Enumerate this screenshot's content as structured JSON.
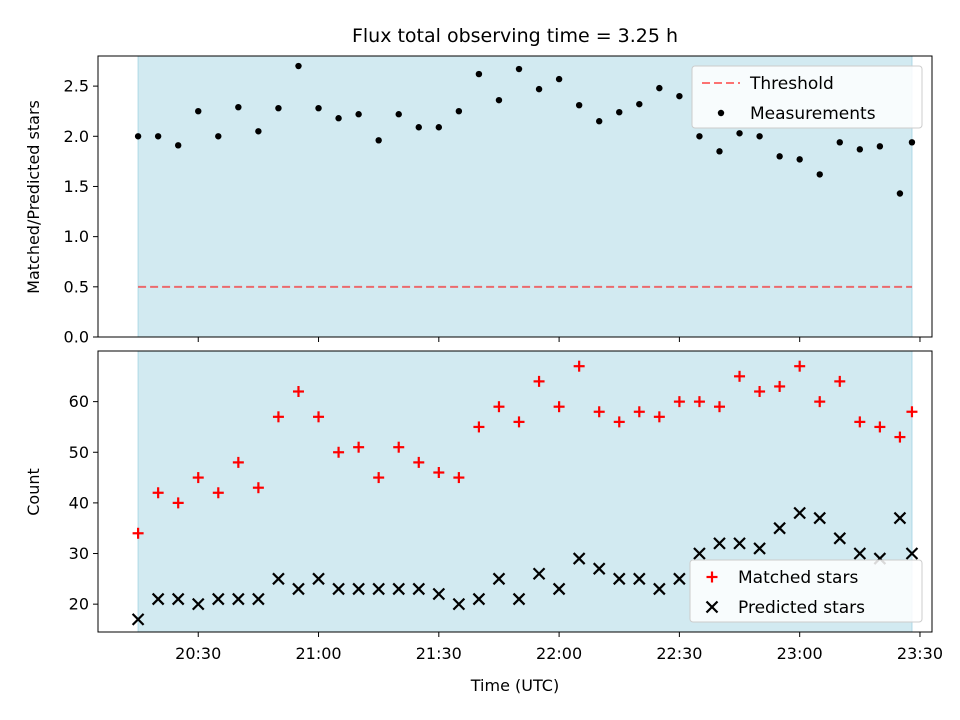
{
  "chart_data": [
    {
      "type": "scatter",
      "title": "Flux total observing time = 3.25 h",
      "ylabel": "Matched/Predicted stars",
      "xlabel": "",
      "ylim": [
        0,
        2.8
      ],
      "yticks": [
        "0.0",
        "0.5",
        "1.0",
        "1.5",
        "2.0",
        "2.5"
      ],
      "xticks": [
        "20:30",
        "21:00",
        "21:30",
        "22:00",
        "22:30",
        "23:00",
        "23:30"
      ],
      "xlim": [
        "20:05",
        "23:33"
      ],
      "shaded_span": [
        "20:15",
        "23:28"
      ],
      "shade_color": "#add8e6",
      "threshold": {
        "name": "Threshold",
        "value": 0.5,
        "color": "#ff0000"
      },
      "legend": {
        "placement": "top-right",
        "entries": [
          "Threshold",
          "Measurements"
        ]
      },
      "series": [
        {
          "name": "Measurements",
          "color": "#000000",
          "marker": "dot",
          "x": [
            "20:15",
            "20:20",
            "20:25",
            "20:30",
            "20:35",
            "20:40",
            "20:45",
            "20:50",
            "20:55",
            "21:00",
            "21:05",
            "21:10",
            "21:15",
            "21:20",
            "21:25",
            "21:30",
            "21:35",
            "21:40",
            "21:45",
            "21:50",
            "21:55",
            "22:00",
            "22:05",
            "22:10",
            "22:15",
            "22:20",
            "22:25",
            "22:30",
            "22:35",
            "22:40",
            "22:45",
            "22:50",
            "22:55",
            "23:00",
            "23:05",
            "23:10",
            "23:15",
            "23:20",
            "23:25",
            "23:28"
          ],
          "y": [
            2.0,
            2.0,
            1.91,
            2.25,
            2.0,
            2.29,
            2.05,
            2.28,
            2.7,
            2.28,
            2.18,
            2.22,
            1.96,
            2.22,
            2.09,
            2.09,
            2.25,
            2.62,
            2.36,
            2.67,
            2.47,
            2.57,
            2.31,
            2.15,
            2.24,
            2.32,
            2.48,
            2.4,
            2.0,
            1.85,
            2.03,
            2.0,
            1.8,
            1.77,
            1.62,
            1.94,
            1.87,
            1.9,
            1.43,
            1.94
          ]
        }
      ]
    },
    {
      "type": "scatter",
      "title": "",
      "ylabel": "Count",
      "xlabel": "Time (UTC)",
      "ylim": [
        14.5,
        70
      ],
      "yticks": [
        "20",
        "30",
        "40",
        "50",
        "60"
      ],
      "xticks": [
        "20:30",
        "21:00",
        "21:30",
        "22:00",
        "22:30",
        "23:00",
        "23:30"
      ],
      "xlim": [
        "20:05",
        "23:33"
      ],
      "shaded_span": [
        "20:15",
        "23:28"
      ],
      "shade_color": "#add8e6",
      "legend": {
        "placement": "bottom-right",
        "entries": [
          "Matched stars",
          "Predicted stars"
        ]
      },
      "series": [
        {
          "name": "Matched stars",
          "color": "#ff0000",
          "marker": "plus",
          "x": [
            "20:15",
            "20:20",
            "20:25",
            "20:30",
            "20:35",
            "20:40",
            "20:45",
            "20:50",
            "20:55",
            "21:00",
            "21:05",
            "21:10",
            "21:15",
            "21:20",
            "21:25",
            "21:30",
            "21:35",
            "21:40",
            "21:45",
            "21:50",
            "21:55",
            "22:00",
            "22:05",
            "22:10",
            "22:15",
            "22:20",
            "22:25",
            "22:30",
            "22:35",
            "22:40",
            "22:45",
            "22:50",
            "22:55",
            "23:00",
            "23:05",
            "23:10",
            "23:15",
            "23:20",
            "23:25",
            "23:28"
          ],
          "y": [
            34,
            42,
            40,
            45,
            42,
            48,
            43,
            57,
            62,
            57,
            50,
            51,
            45,
            51,
            48,
            46,
            45,
            55,
            59,
            56,
            64,
            59,
            67,
            58,
            56,
            58,
            57,
            60,
            60,
            59,
            65,
            62,
            63,
            67,
            60,
            64,
            56,
            55,
            53,
            58
          ]
        },
        {
          "name": "Predicted stars",
          "color": "#000000",
          "marker": "x",
          "x": [
            "20:15",
            "20:20",
            "20:25",
            "20:30",
            "20:35",
            "20:40",
            "20:45",
            "20:50",
            "20:55",
            "21:00",
            "21:05",
            "21:10",
            "21:15",
            "21:20",
            "21:25",
            "21:30",
            "21:35",
            "21:40",
            "21:45",
            "21:50",
            "21:55",
            "22:00",
            "22:05",
            "22:10",
            "22:15",
            "22:20",
            "22:25",
            "22:30",
            "22:35",
            "22:40",
            "22:45",
            "22:50",
            "22:55",
            "23:00",
            "23:05",
            "23:10",
            "23:15",
            "23:20",
            "23:25",
            "23:28"
          ],
          "y": [
            17,
            21,
            21,
            20,
            21,
            21,
            21,
            25,
            23,
            25,
            23,
            23,
            23,
            23,
            23,
            22,
            20,
            21,
            25,
            21,
            26,
            23,
            29,
            27,
            25,
            25,
            23,
            25,
            30,
            32,
            32,
            31,
            35,
            38,
            37,
            33,
            30,
            29,
            37,
            30
          ]
        }
      ]
    }
  ]
}
